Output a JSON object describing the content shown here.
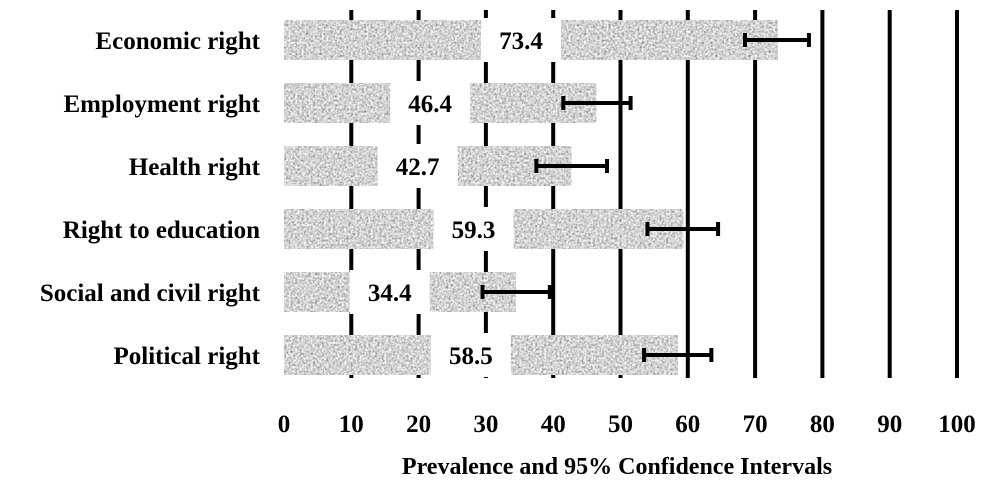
{
  "chart_data": {
    "type": "bar",
    "orientation": "horizontal",
    "title": "",
    "xlabel": "Prevalence and 95% Confidence Intervals",
    "ylabel": "",
    "xlim": [
      0,
      100
    ],
    "x_ticks": [
      0,
      10,
      20,
      30,
      40,
      50,
      60,
      70,
      80,
      90,
      100
    ],
    "grid": "vertical",
    "categories": [
      "Economic right",
      "Employment right",
      "Health right",
      "Right to education",
      "Social and civil right",
      "Political right"
    ],
    "values": [
      73.4,
      46.4,
      42.7,
      59.3,
      34.4,
      58.5
    ],
    "ci_low": [
      68.5,
      41.5,
      37.5,
      54.0,
      29.5,
      53.5
    ],
    "ci_high": [
      78.0,
      51.5,
      48.0,
      64.5,
      39.5,
      63.5
    ],
    "data_labels": [
      "73.4",
      "46.4",
      "42.7",
      "59.3",
      "34.4",
      "58.5"
    ],
    "bar_fill": "granite gray texture",
    "colors": {
      "bar": "#a9a9a9",
      "grid": "#000000",
      "error_bar": "#000000",
      "text": "#000000"
    }
  }
}
